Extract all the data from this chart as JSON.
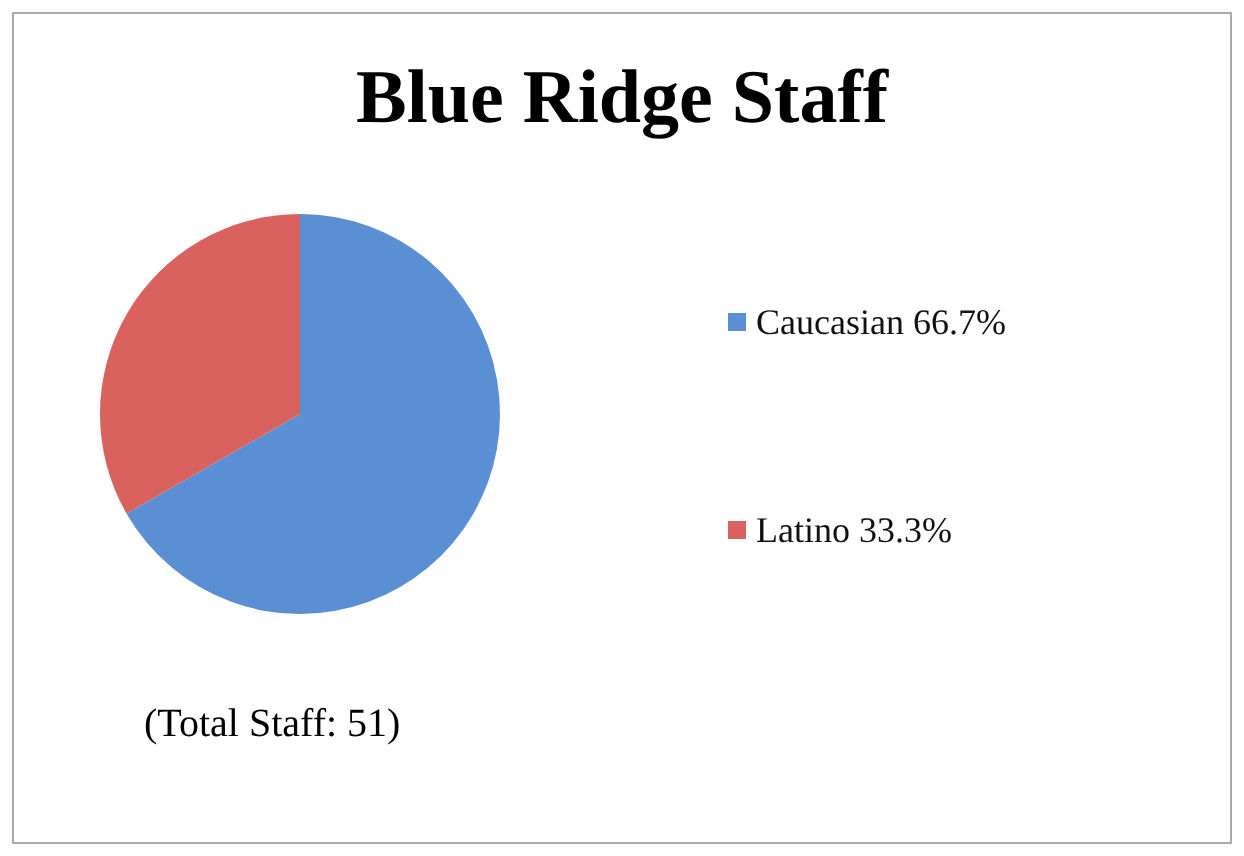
{
  "chart_data": {
    "type": "pie",
    "title": "Blue Ridge Staff",
    "categories": [
      "Caucasian 66.7%",
      "Latino 33.3%"
    ],
    "values": [
      66.7,
      33.3
    ],
    "colors": [
      "#5b8fd4",
      "#d9625e"
    ],
    "legend": "right",
    "annotations": [
      "(Total Staff: 51)"
    ]
  }
}
